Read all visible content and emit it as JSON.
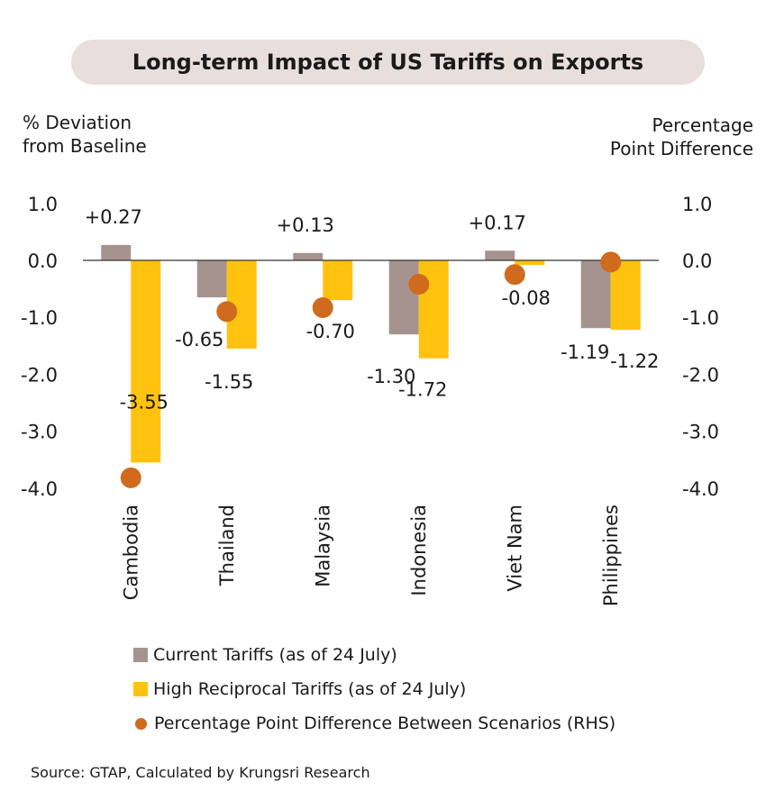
{
  "title": "Long-term Impact of US Tariffs on Exports",
  "left_axis_title": [
    "% Deviation",
    "from Baseline"
  ],
  "right_axis_title": [
    "Percentage",
    "Point Difference"
  ],
  "legend": [
    {
      "label": "Current Tariffs (as of 24 July)",
      "color": "#a69390",
      "shape": "square"
    },
    {
      "label": "High Reciprocal Tariffs (as of 24 July)",
      "color": "#ffc20e",
      "shape": "square"
    },
    {
      "label": "Percentage Point Difference Between Scenarios (RHS)",
      "color": "#d06a1d",
      "shape": "circle"
    }
  ],
  "source": "Source: GTAP, Calculated by Krungsri Research",
  "chart_data": {
    "type": "bar",
    "categories": [
      "Cambodia",
      "Thailand",
      "Malaysia",
      "Indonesia",
      "Viet Nam",
      "Philippines"
    ],
    "series": [
      {
        "name": "Current Tariffs (as of 24 July)",
        "type": "bar",
        "color": "#a69390",
        "values": [
          0.27,
          -0.65,
          0.13,
          -1.3,
          0.17,
          -1.19
        ],
        "labels": [
          "+0.27",
          "-0.65",
          "+0.13",
          "-1.30",
          "+0.17",
          "-1.19"
        ]
      },
      {
        "name": "High Reciprocal Tariffs (as of 24 July)",
        "type": "bar",
        "color": "#ffc20e",
        "values": [
          -3.55,
          -1.55,
          -0.7,
          -1.72,
          -0.08,
          -1.22
        ],
        "labels": [
          "-3.55",
          "-1.55",
          "-0.70",
          "-1.72",
          "-0.08",
          "-1.22"
        ]
      },
      {
        "name": "Percentage Point Difference Between Scenarios (RHS)",
        "type": "scatter",
        "axis": "right",
        "color": "#d06a1d",
        "values": [
          -3.82,
          -0.9,
          -0.83,
          -0.42,
          -0.25,
          -0.03
        ]
      }
    ],
    "ylim": [
      -4.0,
      1.0
    ],
    "y2lim": [
      -4.0,
      1.0
    ],
    "yticks": [
      "1.0",
      "0.0",
      "-1.0",
      "-2.0",
      "-3.0",
      "-4.0"
    ],
    "grid": false,
    "legend_position": "bottom"
  }
}
